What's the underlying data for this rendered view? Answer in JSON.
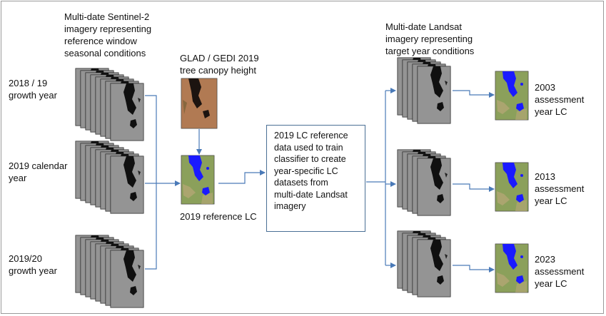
{
  "labels": {
    "sentinel_header": "Multi-date Sentinel-2\nimagery representing\nreference window\nseasonal conditions",
    "glad_header": "GLAD / GEDI 2019\ntree canopy height",
    "landsat_header": "Multi-date Landsat\nimagery representing\ntarget year conditions",
    "year_2018_19": "2018 / 19\ngrowth year",
    "year_2019_cal": "2019 calendar\nyear",
    "year_2019_20": "2019/20\ngrowth year",
    "reference_lc": "2019 reference LC",
    "process_box": "2019 LC reference\ndata used to train\nclassifier to create\nyear-specific LC\ndatasets from\nmulti-date Landsat\nimagery",
    "out_2003": "2003\nassessment\nyear LC",
    "out_2013": "2013\nassessment\nyear LC",
    "out_2023": "2023\nassessment\nyear LC"
  },
  "colors": {
    "arrow": "#4a7ab8",
    "water": "#1a1aff",
    "vegetation": "#7a9a4a",
    "satellite_gray": "#8a8a8a",
    "canopy_brown": "#a9724c"
  }
}
